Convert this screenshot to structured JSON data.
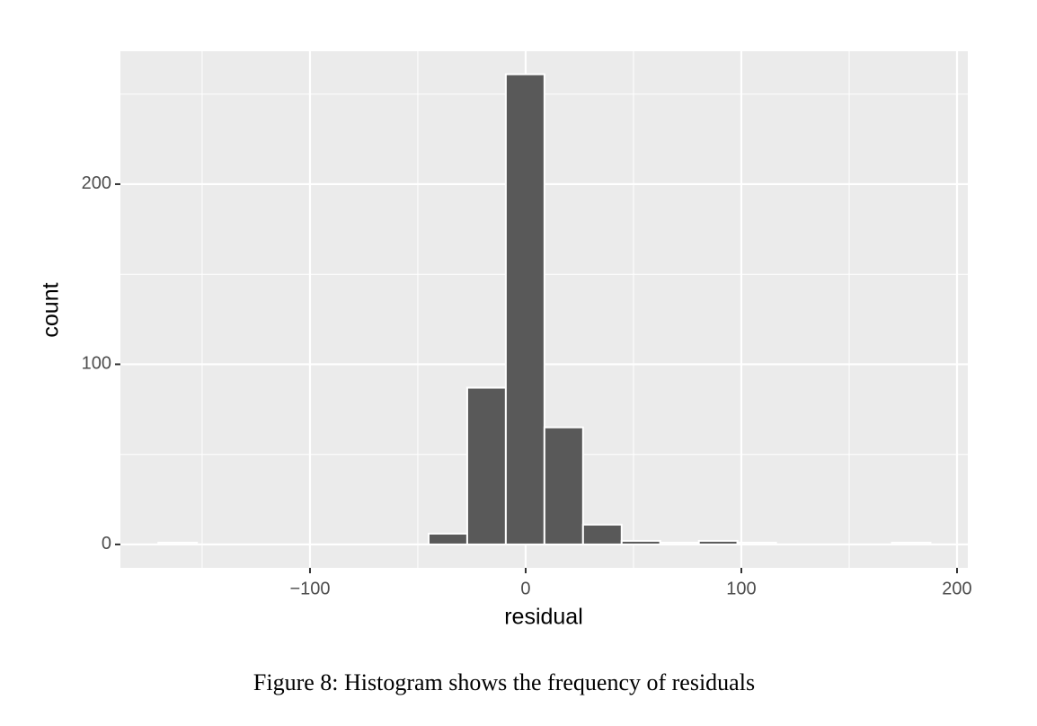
{
  "chart_data": {
    "type": "histogram",
    "x_label": "residual",
    "y_label": "count",
    "bins": [
      -170.3,
      -152.4,
      -134.5,
      -116.6,
      -98.7,
      -80.8,
      -62.9,
      -45.0,
      -27.1,
      -9.2,
      8.7,
      26.6,
      44.5,
      62.4,
      80.3,
      98.2,
      116.1,
      134.0,
      151.9,
      169.8,
      187.7
    ],
    "counts": [
      1,
      0,
      0,
      0,
      0,
      0,
      0,
      6,
      87,
      261,
      65,
      11,
      2,
      1,
      2,
      1,
      0,
      0,
      0,
      1
    ],
    "color": "#595959",
    "edgecolor": "#ffffff",
    "xlim": [
      -187.9,
      205
    ],
    "ylim": [
      -13,
      273.8
    ],
    "xticks": [
      {
        "value": -100,
        "label": "−100"
      },
      0,
      100,
      200
    ],
    "yticks": [
      0,
      100,
      200
    ],
    "xminorticks": [
      -150,
      -50,
      50,
      150
    ],
    "yminorticks": [
      50,
      150,
      250
    ],
    "grid": true,
    "background": "#ebebeb",
    "caption": "Figure 8: Histogram shows the frequency of residuals"
  }
}
